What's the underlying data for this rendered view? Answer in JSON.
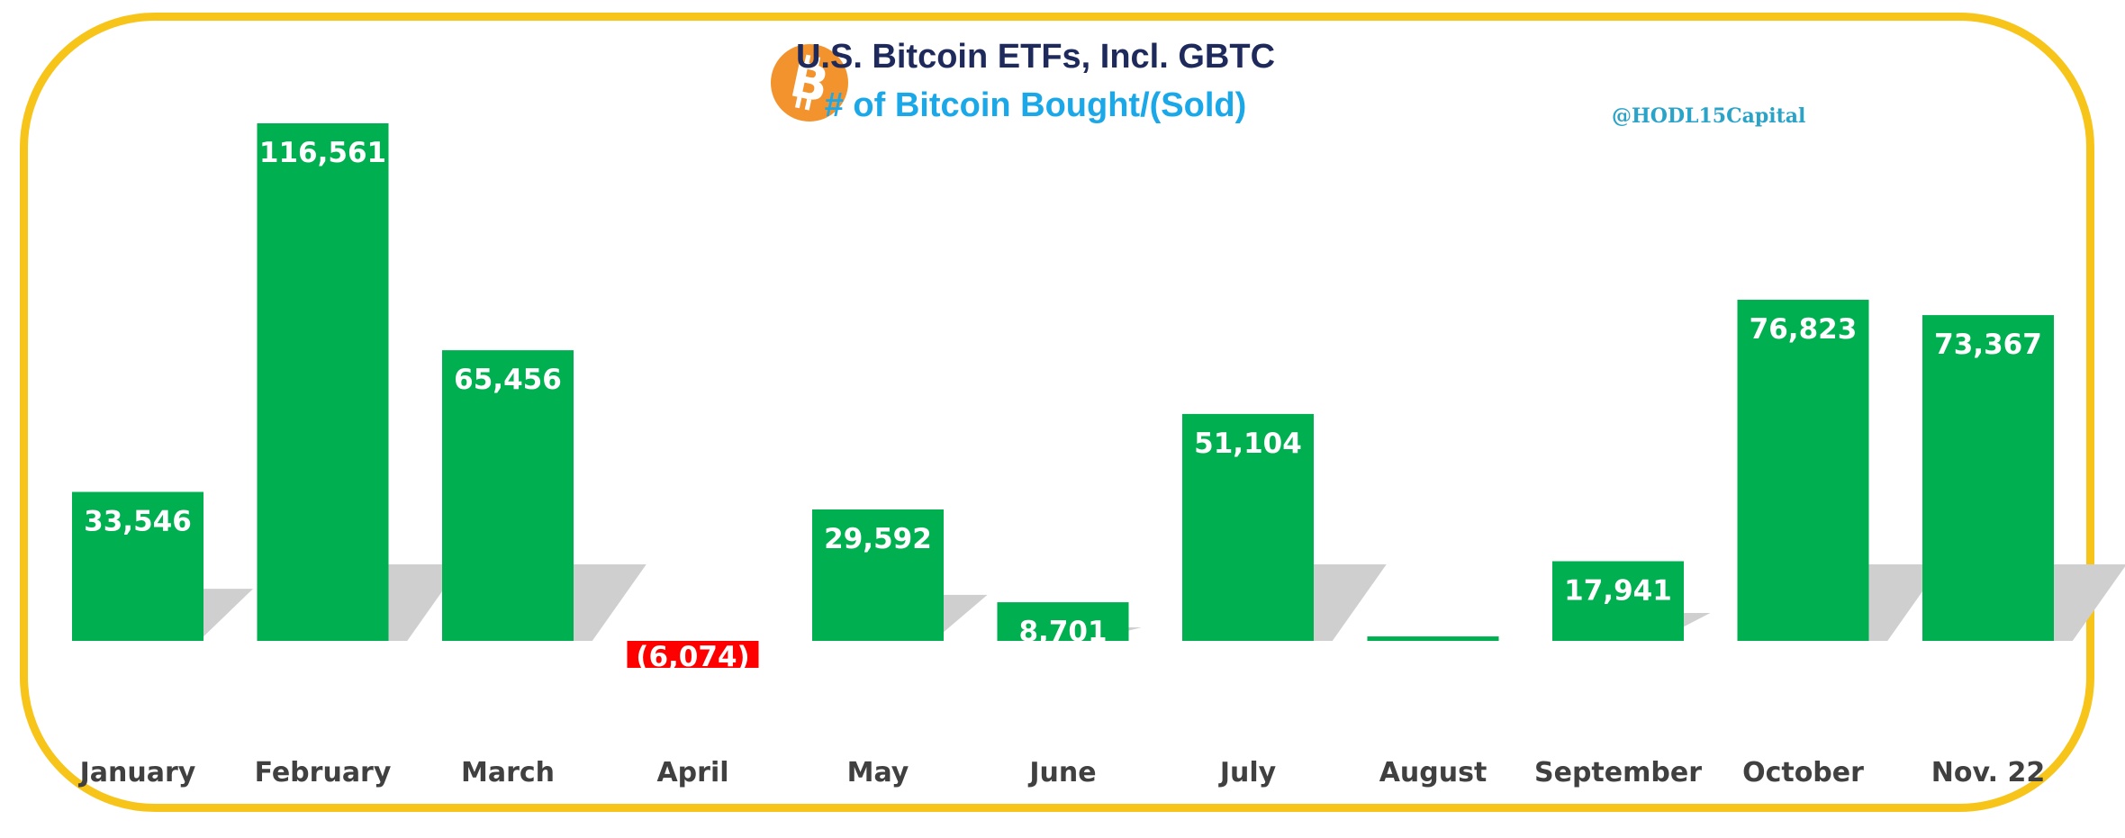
{
  "title": "U.S. Bitcoin ETFs, Incl. GBTC",
  "subtitle": "# of Bitcoin Bought/(Sold)",
  "handle": "@HODL15Capital",
  "colors": {
    "positive": "#00AF50",
    "negative": "#FF0000",
    "frame": "#F7C41A",
    "title": "#1F2A5C",
    "subtitle": "#1BA8E8",
    "logo": "#F2932D",
    "shadow": "#CFCFCF"
  },
  "logo_icon": "bitcoin-logo-icon",
  "chart_data": {
    "type": "bar",
    "title": "U.S. Bitcoin ETFs, Incl. GBTC",
    "subtitle": "# of Bitcoin Bought/(Sold)",
    "xlabel": "",
    "ylabel": "",
    "ylim": [
      -10000,
      120000
    ],
    "grid": false,
    "categories": [
      "January",
      "February",
      "March",
      "April",
      "May",
      "June",
      "July",
      "August",
      "September",
      "October",
      "Nov. 22"
    ],
    "values": [
      33546,
      116561,
      65456,
      -6074,
      29592,
      8701,
      51104,
      1000,
      17941,
      76823,
      73367
    ],
    "data_labels": [
      "33,546",
      "116,561",
      "65,456",
      "(6,074)",
      "29,592",
      "8,701",
      "51,104",
      "",
      "17,941",
      "76,823",
      "73,367"
    ]
  }
}
